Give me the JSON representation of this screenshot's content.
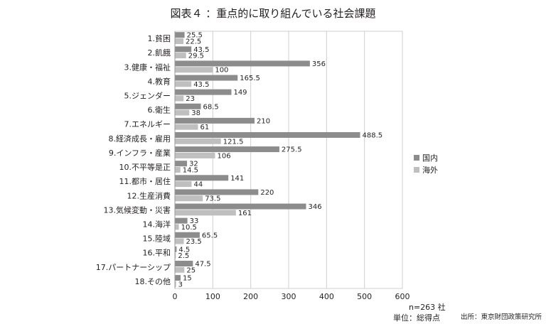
{
  "title": "図表４ ：重点的に取り組んでいる社会課題",
  "notes": {
    "n": "n=263 社",
    "unit": "単位：総得点"
  },
  "source": "出所：東京財団政策研究所",
  "chart_data": {
    "type": "bar",
    "orientation": "horizontal",
    "categories": [
      "1.貧困",
      "2.飢餓",
      "3.健康・福祉",
      "4.教育",
      "5.ジェンダー",
      "6.衛生",
      "7.エネルギー",
      "8.経済成長・雇用",
      "9.インフラ・産業",
      "10.不平等是正",
      "11.都市・居住",
      "12.生産消費",
      "13.気候変動・災害",
      "14.海洋",
      "15.陸域",
      "16.平和",
      "17.パートナーシップ",
      "18.その他"
    ],
    "series": [
      {
        "name": "国内",
        "color": "#8c8c8c",
        "values": [
          25.5,
          43.5,
          356,
          165.5,
          149,
          68.5,
          210,
          488.5,
          275.5,
          32,
          141,
          220,
          346,
          33,
          65.5,
          4.5,
          47.5,
          15
        ]
      },
      {
        "name": "海外",
        "color": "#bfbfbf",
        "values": [
          22.5,
          29.5,
          100,
          43.5,
          23,
          38,
          61,
          121.5,
          106,
          14.5,
          44,
          73.5,
          161,
          10.5,
          23.5,
          2.5,
          25,
          3
        ]
      }
    ],
    "xlim": [
      0,
      600
    ],
    "xticks": [
      0,
      100,
      200,
      300,
      400,
      500,
      600
    ],
    "grid": true,
    "legend_position": "right",
    "value_labels": [
      "25.5",
      "22.5",
      "43.5",
      "29.5",
      "356",
      "100",
      "165.5",
      "43.5",
      "149",
      "23",
      "68.5",
      "38",
      "210",
      "61",
      "488.5",
      "121.5",
      "275.5",
      "106",
      "32",
      "14.5",
      "141",
      "44",
      "220",
      "73.5",
      "346",
      "161",
      "33",
      "10.5",
      "65.5",
      "23.5",
      "4.5",
      "2.5",
      "47.5",
      "25",
      "15",
      "3"
    ]
  }
}
